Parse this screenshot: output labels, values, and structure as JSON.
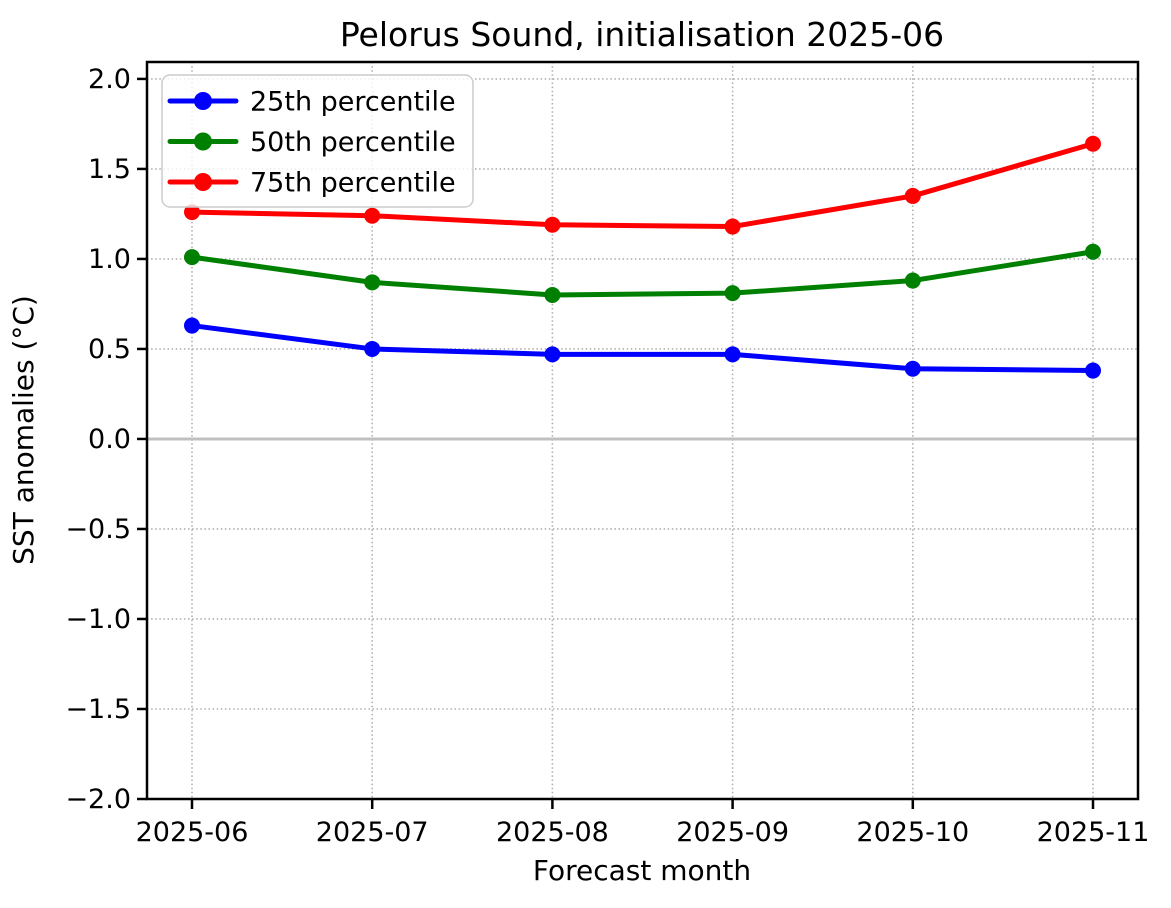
{
  "chart_data": {
    "type": "line",
    "title": "Pelorus Sound, initialisation 2025-06",
    "xlabel": "Forecast month",
    "ylabel": "SST anomalies (°C)",
    "categories": [
      "2025-06",
      "2025-07",
      "2025-08",
      "2025-09",
      "2025-10",
      "2025-11"
    ],
    "series": [
      {
        "name": "25th percentile",
        "color": "#0000ff",
        "values": [
          0.63,
          0.5,
          0.47,
          0.47,
          0.39,
          0.38
        ]
      },
      {
        "name": "50th percentile",
        "color": "#008000",
        "values": [
          1.01,
          0.87,
          0.8,
          0.81,
          0.88,
          1.04
        ]
      },
      {
        "name": "75th percentile",
        "color": "#ff0000",
        "values": [
          1.26,
          1.24,
          1.19,
          1.18,
          1.35,
          1.64
        ]
      }
    ],
    "ylim": [
      -2.0,
      2.094
    ],
    "ytick_values": [
      2.0,
      1.5,
      1.0,
      0.5,
      0.0,
      -0.5,
      -1.0,
      -1.5,
      -2.0
    ],
    "ytick_labels": [
      "2.0",
      "1.5",
      "1.0",
      "0.5",
      "0.0",
      "−0.5",
      "−1.0",
      "−1.5",
      "−2.0"
    ],
    "grid": "dotted",
    "zero_line_value": 0.0,
    "legend": {
      "position": "upper left"
    },
    "colors": {
      "grid": "#b0b0b0",
      "zero_line": "#c0c0c0",
      "spine": "#000000",
      "legend_border": "#cccccc",
      "legend_background": "rgba(255,255,255,0.8)"
    }
  }
}
